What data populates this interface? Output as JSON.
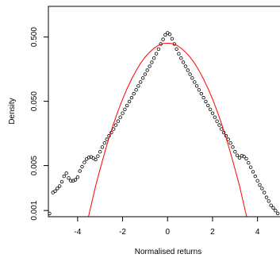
{
  "chart_data": {
    "type": "scatter",
    "title": "",
    "xlabel": "Normalised returns",
    "ylabel": "Density",
    "y_scale": "log",
    "xlim": [
      -5.3,
      5.0
    ],
    "ylim": [
      0.0008,
      1.5
    ],
    "x_ticks": [
      -4,
      -2,
      0,
      2,
      4
    ],
    "x_tick_labels": [
      "-4",
      "-2",
      "0",
      "2",
      "4"
    ],
    "y_ticks": [
      0.001,
      0.005,
      0.05,
      0.5
    ],
    "y_tick_labels": [
      "0.001",
      "0.005",
      "0.050",
      "0.500"
    ],
    "grid": false,
    "legend": "none",
    "series": [
      {
        "kind": "points",
        "marker": "open-circle",
        "color": "#000000",
        "x": [
          -5.25,
          -5.1,
          -5.0,
          -4.9,
          -4.8,
          -4.7,
          -4.6,
          -4.5,
          -4.4,
          -4.3,
          -4.2,
          -4.1,
          -4.0,
          -3.9,
          -3.8,
          -3.7,
          -3.6,
          -3.5,
          -3.4,
          -3.3,
          -3.2,
          -3.1,
          -3.0,
          -2.9,
          -2.8,
          -2.7,
          -2.6,
          -2.5,
          -2.4,
          -2.3,
          -2.2,
          -2.1,
          -2.0,
          -1.9,
          -1.8,
          -1.7,
          -1.6,
          -1.5,
          -1.4,
          -1.3,
          -1.2,
          -1.1,
          -1.0,
          -0.9,
          -0.8,
          -0.7,
          -0.6,
          -0.5,
          -0.4,
          -0.3,
          -0.2,
          -0.1,
          0.0,
          0.1,
          0.2,
          0.3,
          0.4,
          0.5,
          0.6,
          0.7,
          0.8,
          0.9,
          1.0,
          1.1,
          1.2,
          1.3,
          1.4,
          1.5,
          1.6,
          1.7,
          1.8,
          1.9,
          2.0,
          2.1,
          2.2,
          2.3,
          2.4,
          2.5,
          2.6,
          2.7,
          2.8,
          2.9,
          3.0,
          3.1,
          3.2,
          3.3,
          3.4,
          3.5,
          3.6,
          3.7,
          3.8,
          3.9,
          4.0,
          4.1,
          4.2,
          4.3,
          4.4,
          4.5,
          4.6,
          4.7,
          4.8,
          4.9
        ],
        "y": [
          0.0009,
          0.0019,
          0.002,
          0.0022,
          0.0024,
          0.0028,
          0.0034,
          0.0038,
          0.0032,
          0.0029,
          0.0029,
          0.003,
          0.0033,
          0.0041,
          0.0048,
          0.0056,
          0.0063,
          0.0067,
          0.0068,
          0.0065,
          0.0062,
          0.007,
          0.0082,
          0.0097,
          0.0112,
          0.0128,
          0.0145,
          0.0163,
          0.0185,
          0.0213,
          0.0245,
          0.0282,
          0.0325,
          0.0374,
          0.043,
          0.0495,
          0.0569,
          0.0655,
          0.0753,
          0.0866,
          0.0996,
          0.115,
          0.132,
          0.152,
          0.175,
          0.202,
          0.235,
          0.275,
          0.325,
          0.39,
          0.46,
          0.54,
          0.58,
          0.55,
          0.47,
          0.39,
          0.325,
          0.275,
          0.235,
          0.202,
          0.175,
          0.152,
          0.132,
          0.115,
          0.0996,
          0.0866,
          0.0753,
          0.0655,
          0.0569,
          0.0495,
          0.043,
          0.0374,
          0.0325,
          0.0282,
          0.0245,
          0.0213,
          0.0185,
          0.0163,
          0.0145,
          0.0128,
          0.0112,
          0.0097,
          0.0082,
          0.0072,
          0.0066,
          0.0071,
          0.0069,
          0.0064,
          0.0055,
          0.0047,
          0.004,
          0.0034,
          0.0029,
          0.0025,
          0.0022,
          0.0019,
          0.0016,
          0.0014,
          0.0012,
          0.0011,
          0.001,
          0.0009
        ]
      },
      {
        "kind": "line",
        "color": "#ff0000",
        "x": [
          -3.6,
          -3.4,
          -3.2,
          -3.0,
          -2.8,
          -2.6,
          -2.4,
          -2.2,
          -2.0,
          -1.8,
          -1.6,
          -1.4,
          -1.2,
          -1.0,
          -0.8,
          -0.6,
          -0.4,
          -0.2,
          0.0,
          0.2,
          0.4,
          0.6,
          0.8,
          1.0,
          1.2,
          1.4,
          1.6,
          1.8,
          2.0,
          2.2,
          2.4,
          2.6,
          2.8,
          3.0,
          3.2,
          3.4,
          3.6
        ],
        "y": [
          0.0006,
          0.0012,
          0.0024,
          0.0044,
          0.0079,
          0.0136,
          0.0224,
          0.0355,
          0.054,
          0.0789,
          0.111,
          0.15,
          0.195,
          0.243,
          0.291,
          0.336,
          0.372,
          0.395,
          0.4,
          0.395,
          0.372,
          0.336,
          0.291,
          0.243,
          0.195,
          0.15,
          0.111,
          0.0789,
          0.054,
          0.0355,
          0.0224,
          0.0136,
          0.0079,
          0.0044,
          0.0024,
          0.0012,
          0.0006
        ]
      }
    ]
  }
}
